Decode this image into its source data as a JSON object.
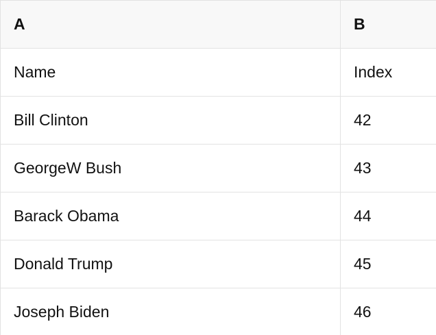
{
  "colors": {
    "header_bg": "#f8f8f8",
    "border": "#e2e2e2",
    "text": "#111111",
    "row_bg": "#ffffff"
  },
  "table": {
    "column_headers": {
      "a": "A",
      "b": "B"
    },
    "rows": [
      {
        "a": "Name",
        "b": "Index"
      },
      {
        "a": "Bill Clinton",
        "b": "42"
      },
      {
        "a": "GeorgeW Bush",
        "b": "43"
      },
      {
        "a": "Barack Obama",
        "b": "44"
      },
      {
        "a": "Donald Trump",
        "b": "45"
      },
      {
        "a": "Joseph Biden",
        "b": "46"
      }
    ]
  }
}
